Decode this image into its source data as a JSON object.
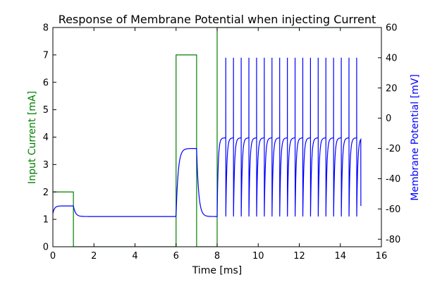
{
  "chart_data": {
    "type": "line",
    "title": "Response of Membrane Potential when injecting Current",
    "xlabel": "Time [ms]",
    "xlim": [
      0,
      16
    ],
    "xticks": [
      0,
      2,
      4,
      6,
      8,
      10,
      12,
      14,
      16
    ],
    "y_left": {
      "label": "Input Current [mA]",
      "color": "#008000",
      "lim": [
        0,
        8
      ],
      "ticks": [
        0,
        1,
        2,
        3,
        4,
        5,
        6,
        7,
        8
      ]
    },
    "y_right": {
      "label": "Membrane Potential [mV]",
      "color": "#0000ff",
      "lim": [
        -85,
        60
      ],
      "ticks": [
        -80,
        -60,
        -40,
        -20,
        0,
        20,
        40,
        60
      ]
    },
    "series": [
      {
        "axis": "left",
        "color": "#008000",
        "x": [
          0,
          1,
          1,
          6,
          6,
          7,
          7,
          8,
          8,
          15
        ],
        "y": [
          2,
          2,
          0,
          0,
          7,
          7,
          0,
          0,
          8,
          8
        ]
      },
      {
        "axis": "right",
        "color": "#0000ff",
        "resting_mV": -65,
        "plateau_step1_mV": -58,
        "plateau_step2_mV": -20,
        "spike_peak_mV": 40,
        "spike_trough_mV": -65,
        "spike_start_ms": 8.42,
        "spike_period_ms": 0.375,
        "spike_count": 18,
        "end_time_ms": 15
      }
    ]
  }
}
